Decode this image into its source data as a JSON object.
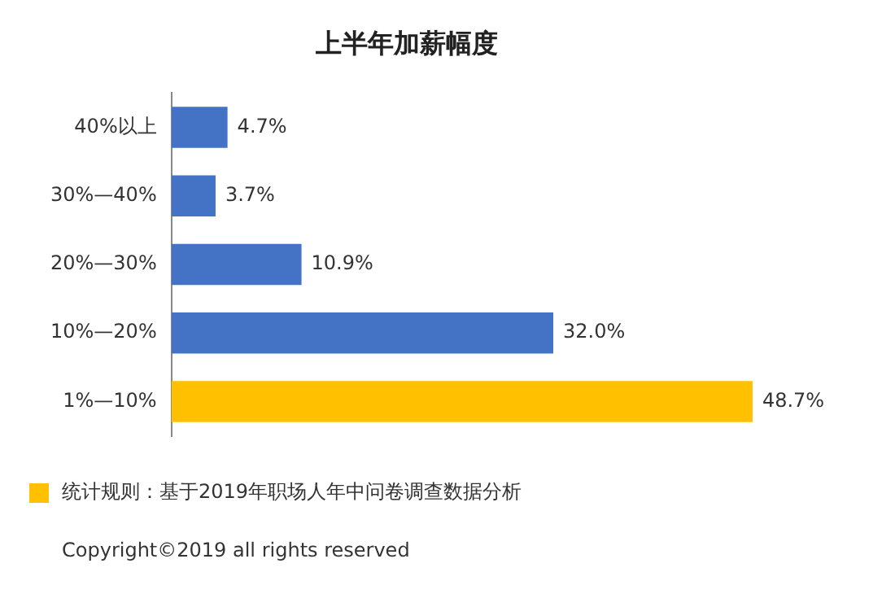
{
  "chart_data": {
    "type": "bar",
    "orientation": "horizontal",
    "title": "上半年加薪幅度",
    "categories": [
      "40%以上",
      "30%—40%",
      "20%—30%",
      "10%—20%",
      "1%—10%"
    ],
    "values": [
      4.7,
      3.7,
      10.9,
      32.0,
      48.7
    ],
    "colors": [
      "#4472c4",
      "#4472c4",
      "#4472c4",
      "#4472c4",
      "#ffc000"
    ],
    "value_labels": [
      "4.7%",
      "3.7%",
      "10.9%",
      "32.0%",
      "48.7%"
    ],
    "tick_labels": "y",
    "annotations": [
      "统计规则：基于2019年职场人年中问卷调查数据分析",
      "Copyright©2019 all rights reserved"
    ]
  }
}
